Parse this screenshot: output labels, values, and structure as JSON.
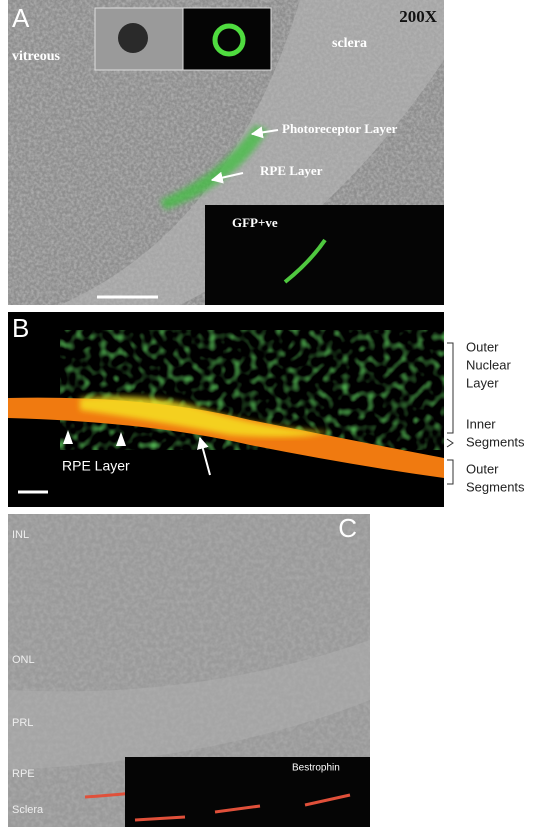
{
  "panel_a": {
    "letter": "A",
    "magnification": "200X",
    "labels": {
      "vitreous": "vitreous",
      "sclera": "sclera",
      "photoreceptor": "Photoreceptor Layer",
      "rpe": "RPE Layer"
    },
    "inset": "GFP+ve"
  },
  "panel_b": {
    "letter": "B",
    "rpe": "RPE Layer",
    "brackets": {
      "outer_nuclear": [
        "Outer",
        "Nuclear",
        "Layer"
      ],
      "inner": [
        "Inner",
        "Segments"
      ],
      "outer": [
        "Outer",
        "Segments"
      ]
    }
  },
  "panel_c": {
    "letter": "C",
    "layers": [
      "INL",
      "ONL",
      "PRL",
      "RPE",
      "Sclera"
    ],
    "inset": "Bestrophin"
  }
}
